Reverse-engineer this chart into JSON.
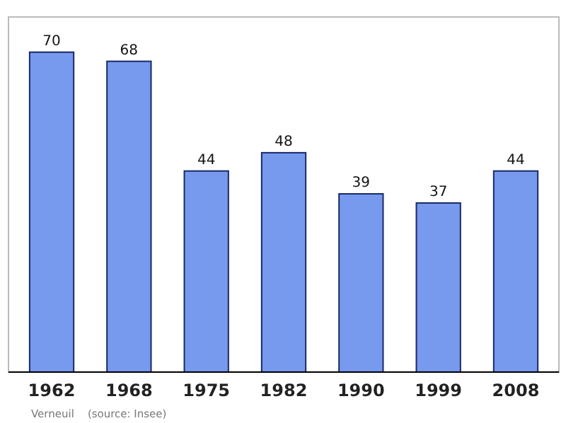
{
  "chart_data": {
    "type": "bar",
    "categories": [
      "1962",
      "1968",
      "1975",
      "1982",
      "1990",
      "1999",
      "2008"
    ],
    "values": [
      70,
      68,
      44,
      48,
      39,
      37,
      44
    ],
    "color": "#7799ee",
    "data_labels": true,
    "annotations": [
      "Verneuil    (source: Insee)"
    ]
  }
}
